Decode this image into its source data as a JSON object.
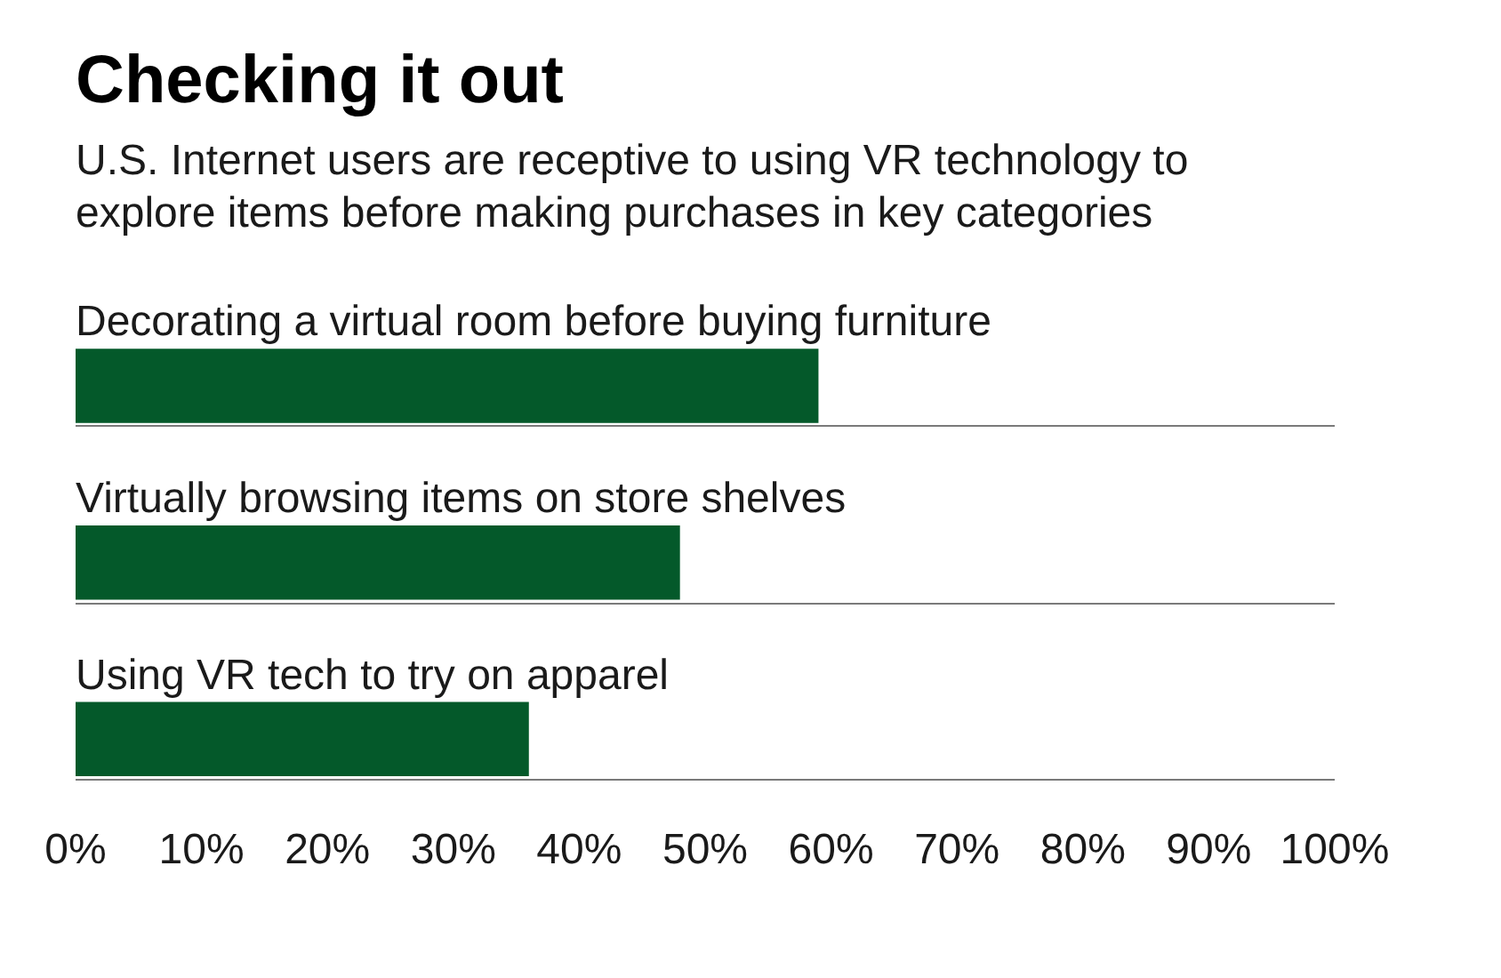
{
  "chart_data": {
    "type": "bar",
    "orientation": "horizontal",
    "title": "Checking it out",
    "subtitle": "U.S. Internet users are receptive to using VR technology to explore items before making purchases in key categories",
    "categories": [
      "Decorating a virtual room before buying furniture",
      "Virtually browsing items on store shelves",
      "Using VR tech to try on apparel"
    ],
    "values": [
      59,
      48,
      36
    ],
    "color": "#04592a",
    "xlim": [
      0,
      100
    ],
    "xticks": [
      {
        "value": 0,
        "label": "0%"
      },
      {
        "value": 10,
        "label": "10%"
      },
      {
        "value": 20,
        "label": "20%"
      },
      {
        "value": 30,
        "label": "30%"
      },
      {
        "value": 40,
        "label": "40%"
      },
      {
        "value": 50,
        "label": "50%"
      },
      {
        "value": 60,
        "label": "60%"
      },
      {
        "value": 70,
        "label": "70%"
      },
      {
        "value": 80,
        "label": "80%"
      },
      {
        "value": 90,
        "label": "90%"
      },
      {
        "value": 100,
        "label": "100%"
      }
    ],
    "grid": "y"
  }
}
